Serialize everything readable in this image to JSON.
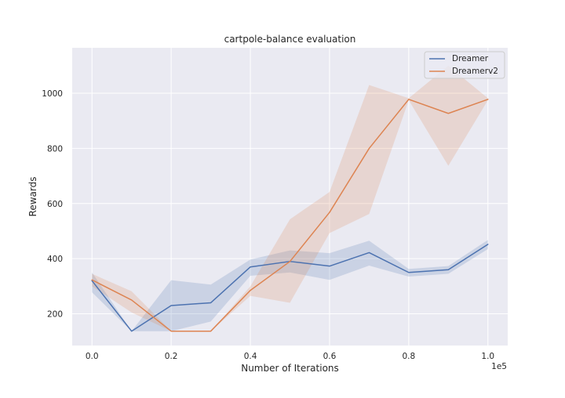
{
  "chart_data": {
    "type": "line",
    "title": "cartpole-balance evaluation",
    "xlabel": "Number of Iterations",
    "ylabel": "Rewards",
    "x_offset_text": "1e5",
    "xlim": [
      -0.05,
      1.05
    ],
    "ylim": [
      85,
      1165
    ],
    "x_ticks": [
      0.0,
      0.2,
      0.4,
      0.6,
      0.8,
      1.0
    ],
    "x_tick_labels": [
      "0.0",
      "0.2",
      "0.4",
      "0.6",
      "0.8",
      "1.0"
    ],
    "y_ticks": [
      200,
      400,
      600,
      800,
      1000
    ],
    "y_tick_labels": [
      "200",
      "400",
      "600",
      "800",
      "1000"
    ],
    "grid": true,
    "legend_position": "top-right",
    "x": [
      0.0,
      0.1,
      0.2,
      0.3,
      0.4,
      0.5,
      0.6,
      0.7,
      0.8,
      0.9,
      1.0
    ],
    "series": [
      {
        "name": "Dreamer",
        "color": "#4c72b0",
        "values": [
          320,
          137,
          230,
          240,
          370,
          390,
          373,
          422,
          350,
          360,
          452
        ],
        "lower": [
          278,
          137,
          137,
          172,
          338,
          350,
          323,
          375,
          335,
          345,
          435
        ],
        "upper": [
          350,
          137,
          322,
          306,
          397,
          430,
          420,
          465,
          363,
          373,
          468
        ]
      },
      {
        "name": "Dreamerv2",
        "color": "#dd8452",
        "values": [
          323,
          250,
          137,
          137,
          285,
          390,
          568,
          800,
          978,
          927,
          978
        ],
        "lower": [
          300,
          205,
          137,
          137,
          265,
          240,
          493,
          562,
          975,
          737,
          975
        ],
        "upper": [
          345,
          282,
          137,
          137,
          300,
          543,
          642,
          1030,
          982,
          1100,
          982
        ]
      }
    ]
  }
}
